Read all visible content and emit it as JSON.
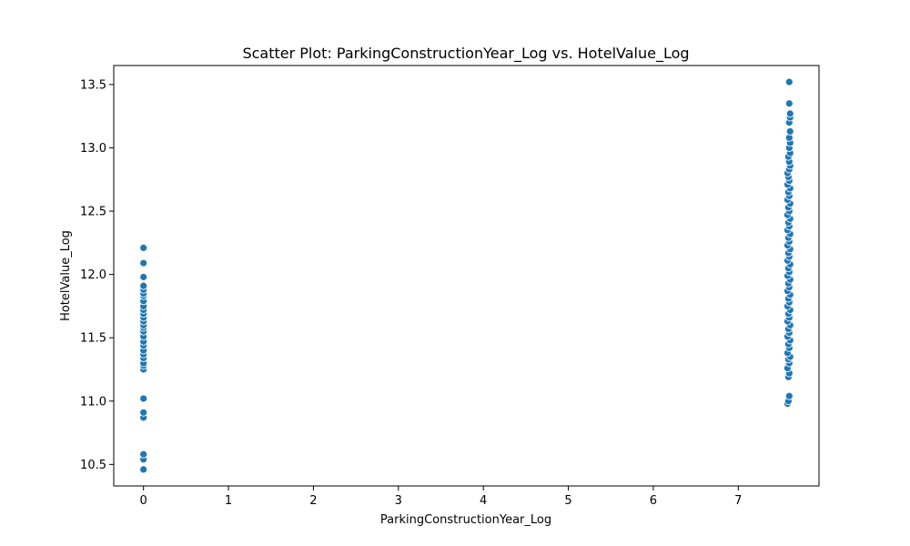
{
  "chart_data": {
    "type": "scatter",
    "title": "Scatter Plot: ParkingConstructionYear_Log vs. HotelValue_Log",
    "xlabel": "ParkingConstructionYear_Log",
    "ylabel": "HotelValue_Log",
    "xlim": [
      -0.35,
      7.95
    ],
    "ylim": [
      10.33,
      13.65
    ],
    "xticks": [
      0,
      1,
      2,
      3,
      4,
      5,
      6,
      7
    ],
    "yticks": [
      10.5,
      11.0,
      11.5,
      12.0,
      12.5,
      13.0,
      13.5
    ],
    "ytick_labels": [
      "10.5",
      "11.0",
      "11.5",
      "12.0",
      "12.5",
      "13.0",
      "13.5"
    ],
    "grid": false,
    "series": [
      {
        "color": "#1f77b4",
        "points": [
          [
            0,
            10.46
          ],
          [
            0,
            10.54
          ],
          [
            0,
            10.58
          ],
          [
            0,
            10.87
          ],
          [
            0,
            10.91
          ],
          [
            0,
            11.02
          ],
          [
            0,
            11.25
          ],
          [
            0,
            11.28
          ],
          [
            0,
            11.3
          ],
          [
            0,
            11.34
          ],
          [
            0,
            11.37
          ],
          [
            0,
            11.4
          ],
          [
            0,
            11.44
          ],
          [
            0,
            11.47
          ],
          [
            0,
            11.51
          ],
          [
            0,
            11.55
          ],
          [
            0,
            11.58
          ],
          [
            0,
            11.6
          ],
          [
            0,
            11.63
          ],
          [
            0,
            11.66
          ],
          [
            0,
            11.69
          ],
          [
            0,
            11.72
          ],
          [
            0,
            11.75
          ],
          [
            0,
            11.79
          ],
          [
            0,
            11.83
          ],
          [
            0,
            11.85
          ],
          [
            0,
            11.88
          ],
          [
            0,
            11.91
          ],
          [
            0,
            11.98
          ],
          [
            0,
            12.09
          ],
          [
            0,
            12.21
          ],
          [
            7.58,
            10.98
          ],
          [
            7.59,
            11.0
          ],
          [
            7.6,
            11.04
          ],
          [
            7.59,
            11.19
          ],
          [
            7.6,
            11.22
          ],
          [
            7.58,
            11.26
          ],
          [
            7.6,
            11.3
          ],
          [
            7.59,
            11.33
          ],
          [
            7.61,
            11.35
          ],
          [
            7.58,
            11.38
          ],
          [
            7.6,
            11.42
          ],
          [
            7.59,
            11.45
          ],
          [
            7.61,
            11.48
          ],
          [
            7.58,
            11.51
          ],
          [
            7.6,
            11.54
          ],
          [
            7.59,
            11.57
          ],
          [
            7.61,
            11.6
          ],
          [
            7.58,
            11.63
          ],
          [
            7.6,
            11.66
          ],
          [
            7.59,
            11.69
          ],
          [
            7.61,
            11.72
          ],
          [
            7.58,
            11.75
          ],
          [
            7.6,
            11.78
          ],
          [
            7.59,
            11.81
          ],
          [
            7.61,
            11.84
          ],
          [
            7.58,
            11.87
          ],
          [
            7.6,
            11.9
          ],
          [
            7.59,
            11.93
          ],
          [
            7.61,
            11.96
          ],
          [
            7.58,
            11.99
          ],
          [
            7.6,
            12.02
          ],
          [
            7.59,
            12.05
          ],
          [
            7.61,
            12.08
          ],
          [
            7.58,
            12.11
          ],
          [
            7.6,
            12.14
          ],
          [
            7.59,
            12.17
          ],
          [
            7.61,
            12.2
          ],
          [
            7.58,
            12.23
          ],
          [
            7.6,
            12.26
          ],
          [
            7.59,
            12.29
          ],
          [
            7.61,
            12.32
          ],
          [
            7.58,
            12.35
          ],
          [
            7.6,
            12.38
          ],
          [
            7.59,
            12.41
          ],
          [
            7.61,
            12.44
          ],
          [
            7.58,
            12.47
          ],
          [
            7.6,
            12.5
          ],
          [
            7.59,
            12.53
          ],
          [
            7.61,
            12.56
          ],
          [
            7.58,
            12.59
          ],
          [
            7.6,
            12.62
          ],
          [
            7.59,
            12.65
          ],
          [
            7.61,
            12.68
          ],
          [
            7.58,
            12.71
          ],
          [
            7.6,
            12.74
          ],
          [
            7.59,
            12.77
          ],
          [
            7.58,
            12.8
          ],
          [
            7.6,
            12.83
          ],
          [
            7.61,
            12.86
          ],
          [
            7.6,
            12.89
          ],
          [
            7.59,
            12.93
          ],
          [
            7.61,
            12.96
          ],
          [
            7.6,
            13.0
          ],
          [
            7.61,
            13.04
          ],
          [
            7.6,
            13.08
          ],
          [
            7.61,
            13.13
          ],
          [
            7.6,
            13.2
          ],
          [
            7.61,
            13.24
          ],
          [
            7.61,
            13.27
          ],
          [
            7.6,
            13.35
          ],
          [
            7.6,
            13.52
          ]
        ]
      }
    ]
  }
}
